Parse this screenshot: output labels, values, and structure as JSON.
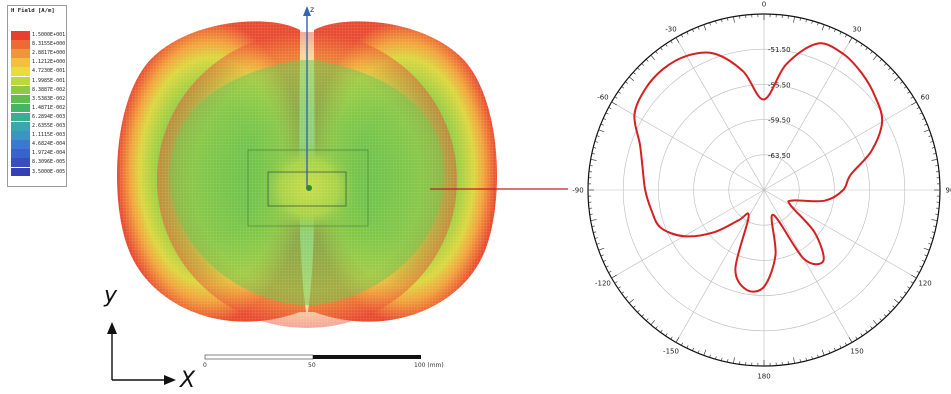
{
  "legend": {
    "title": "H Field [A/m]",
    "entries": [
      {
        "label": "1.5000E+001",
        "color": "#e8402c"
      },
      {
        "label": "8.3155E+000",
        "color": "#ee6a34"
      },
      {
        "label": "2.8817E+000",
        "color": "#f0963a"
      },
      {
        "label": "1.1212E+000",
        "color": "#f4bf3c"
      },
      {
        "label": "4.7230E-001",
        "color": "#e8dc3e"
      },
      {
        "label": "1.9985E-001",
        "color": "#bcd83e"
      },
      {
        "label": "8.3887E-002",
        "color": "#8ccb40"
      },
      {
        "label": "3.5383E-002",
        "color": "#5ebe48"
      },
      {
        "label": "1.4871E-002",
        "color": "#44b468"
      },
      {
        "label": "6.2894E-003",
        "color": "#3aae8e"
      },
      {
        "label": "2.6355E-003",
        "color": "#36a8ae"
      },
      {
        "label": "1.1115E-003",
        "color": "#3a94c4"
      },
      {
        "label": "4.6824E-004",
        "color": "#3a7ad0"
      },
      {
        "label": "1.9724E-004",
        "color": "#3a62cc"
      },
      {
        "label": "8.3096E-005",
        "color": "#3a4cc2"
      },
      {
        "label": "3.5000E-005",
        "color": "#3440b4"
      }
    ]
  },
  "field_plot": {
    "z_axis_label": "z",
    "scale_labels": [
      "0",
      "50",
      "100 (mm)"
    ]
  },
  "coordinate_axes": {
    "y_label": "y",
    "x_label": "X"
  },
  "chart_data": {
    "type": "polar",
    "angle_labels": [
      "0",
      "30",
      "60",
      "90",
      "120",
      "150",
      "180",
      "-150",
      "-120",
      "-90",
      "-60",
      "-30"
    ],
    "radial_labels": [
      "-51.50",
      "-55.50",
      "-59.50",
      "-63.50"
    ],
    "rlim": [
      -67.5,
      -47.5
    ],
    "series": [
      {
        "color": "#d42020",
        "theta": [
          0,
          10,
          20,
          30,
          40,
          50,
          60,
          70,
          80,
          90,
          100,
          110,
          120,
          130,
          140,
          150,
          160,
          170,
          180,
          190,
          200,
          210,
          220,
          230,
          240,
          250,
          260,
          270,
          280,
          290,
          300,
          310,
          320,
          330,
          340,
          350,
          360
        ],
        "r": [
          -57.2,
          -53.0,
          -49.8,
          -49.6,
          -50.2,
          -51.0,
          -52.0,
          -54.5,
          -57.5,
          -58.5,
          -60.5,
          -64.0,
          -64.0,
          -60.0,
          -57.0,
          -58.5,
          -64.5,
          -60.0,
          -56.5,
          -56.0,
          -58.0,
          -64.0,
          -63.0,
          -60.0,
          -57.0,
          -55.0,
          -54.5,
          -54.0,
          -53.5,
          -52.5,
          -50.5,
          -49.8,
          -49.6,
          -49.9,
          -51.0,
          -53.8,
          -57.2
        ]
      }
    ]
  }
}
